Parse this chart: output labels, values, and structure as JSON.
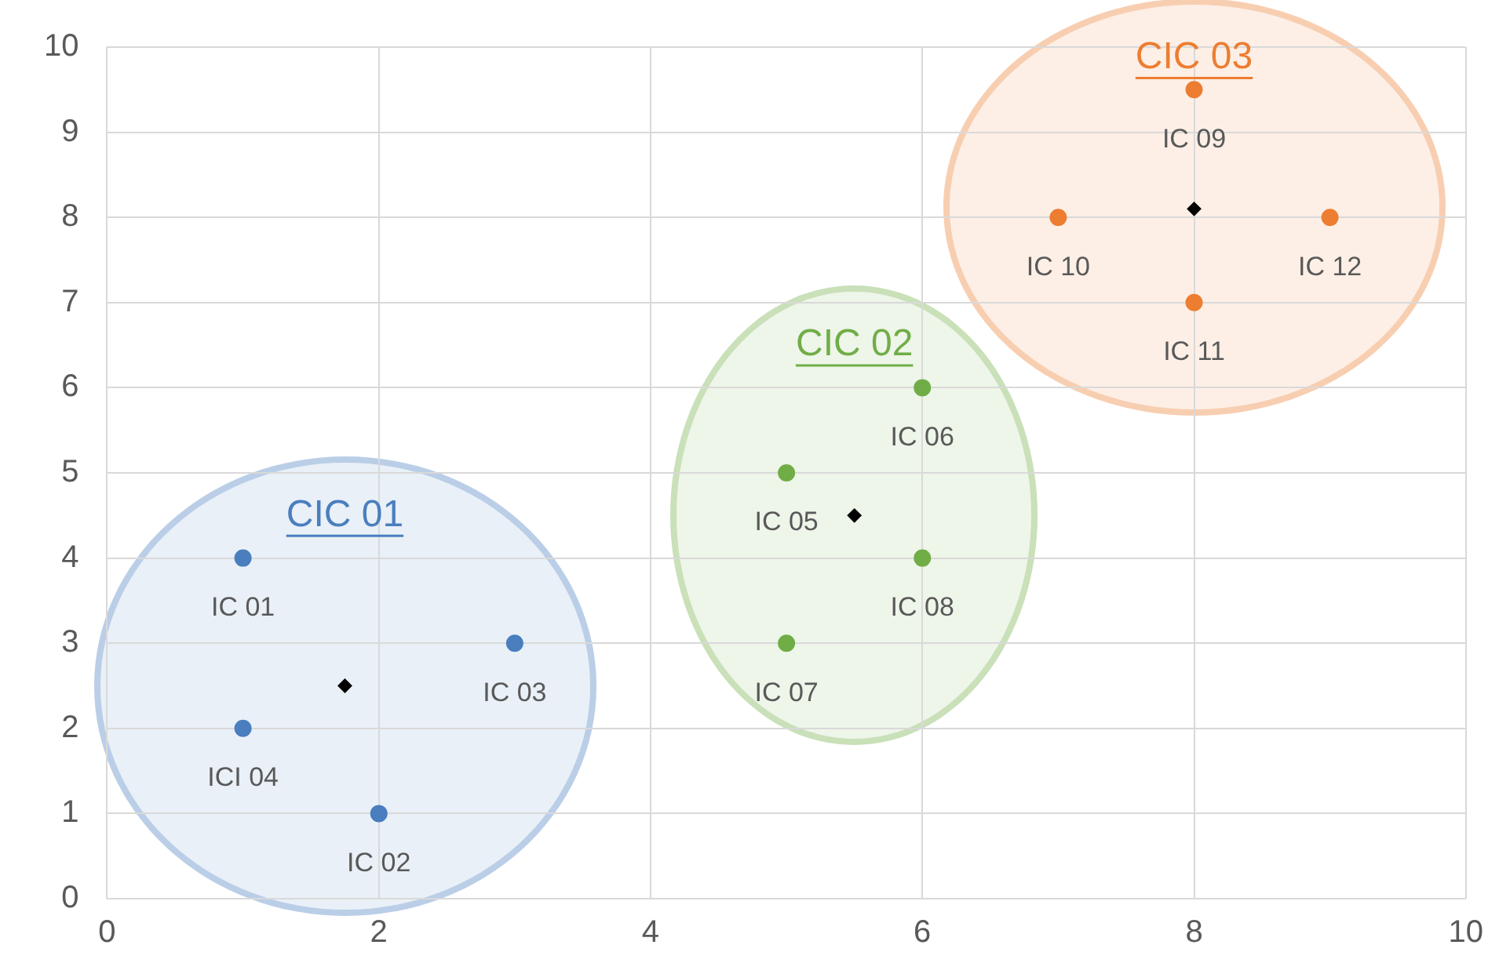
{
  "chart_data": {
    "type": "scatter",
    "xlim": [
      0,
      10
    ],
    "ylim": [
      0,
      10
    ],
    "xticks": [
      0,
      2,
      4,
      6,
      8,
      10
    ],
    "yticks": [
      0,
      1,
      2,
      3,
      4,
      5,
      6,
      7,
      8,
      9,
      10
    ],
    "grid": true,
    "legend": false,
    "series": [
      {
        "name": "CIC 01",
        "color": "#4a7ebf",
        "marker": "circle",
        "x": [
          1,
          2,
          3,
          1
        ],
        "values": [
          4,
          1,
          3,
          2
        ]
      },
      {
        "name": "CIC 02",
        "color": "#70ad47",
        "marker": "circle",
        "x": [
          5,
          6,
          5,
          6
        ],
        "values": [
          5,
          6,
          3,
          4
        ]
      },
      {
        "name": "CIC 03",
        "color": "#ed7d31",
        "marker": "circle",
        "x": [
          8,
          7,
          8,
          9
        ],
        "values": [
          9.5,
          8,
          7,
          8
        ]
      },
      {
        "color": "#000000",
        "marker": "diamond",
        "x": [
          1.75,
          5.5,
          8
        ],
        "values": [
          2.5,
          4.5,
          8.1
        ]
      }
    ],
    "annotations": [
      {
        "text": "IC 01",
        "x": 1,
        "y": 4
      },
      {
        "text": "IC 02",
        "x": 2,
        "y": 1
      },
      {
        "text": "IC 03",
        "x": 3,
        "y": 3
      },
      {
        "text": "ICI 04",
        "x": 1,
        "y": 2
      },
      {
        "text": "IC 05",
        "x": 5,
        "y": 5
      },
      {
        "text": "IC 06",
        "x": 6,
        "y": 6
      },
      {
        "text": "IC 07",
        "x": 5,
        "y": 3
      },
      {
        "text": "IC 08",
        "x": 6,
        "y": 4
      },
      {
        "text": "IC 09",
        "x": 8,
        "y": 9.5
      },
      {
        "text": "IC 10",
        "x": 7,
        "y": 8
      },
      {
        "text": "IC 11",
        "x": 8,
        "y": 7
      },
      {
        "text": "IC 12",
        "x": 9,
        "y": 8
      }
    ]
  }
}
